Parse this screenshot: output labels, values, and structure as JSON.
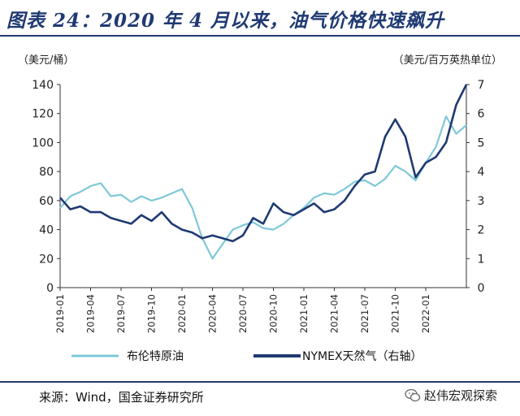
{
  "figure": {
    "title": "图表 24：2020 年 4 月以来，油气价格快速飙升",
    "source": "来源：Wind，国金证券研究所",
    "watermark": "赵伟宏观探索"
  },
  "chart_data": {
    "type": "line",
    "left_axis": {
      "unit_label": "（美元/桶）",
      "range": [
        0,
        140
      ],
      "ticks": [
        0,
        20,
        40,
        60,
        80,
        100,
        120,
        140
      ]
    },
    "right_axis": {
      "unit_label": "（美元/百万英热单位）",
      "range": [
        0,
        7
      ],
      "ticks": [
        0,
        1,
        2,
        3,
        4,
        5,
        6,
        7
      ]
    },
    "x_ticks": [
      "2019-01",
      "2019-04",
      "2019-07",
      "2019-10",
      "2020-01",
      "2020-04",
      "2020-07",
      "2020-10",
      "2021-01",
      "2021-04",
      "2021-07",
      "2021-10",
      "2022-01"
    ],
    "x_range": [
      "2019-01",
      "2022-05"
    ],
    "legend": {
      "placement": "bottom"
    },
    "series": [
      {
        "name": "布伦特原油",
        "axis": "left",
        "color": "#7ec8d8",
        "points": [
          [
            "2019-01",
            55
          ],
          [
            "2019-02",
            63
          ],
          [
            "2019-03",
            66
          ],
          [
            "2019-04",
            70
          ],
          [
            "2019-05",
            72
          ],
          [
            "2019-06",
            63
          ],
          [
            "2019-07",
            64
          ],
          [
            "2019-08",
            59
          ],
          [
            "2019-09",
            63
          ],
          [
            "2019-10",
            60
          ],
          [
            "2019-11",
            62
          ],
          [
            "2019-12",
            65
          ],
          [
            "2020-01",
            68
          ],
          [
            "2020-02",
            55
          ],
          [
            "2020-03",
            34
          ],
          [
            "2020-04",
            20
          ],
          [
            "2020-05",
            30
          ],
          [
            "2020-06",
            40
          ],
          [
            "2020-07",
            43
          ],
          [
            "2020-08",
            45
          ],
          [
            "2020-09",
            41
          ],
          [
            "2020-10",
            40
          ],
          [
            "2020-11",
            44
          ],
          [
            "2020-12",
            50
          ],
          [
            "2021-01",
            55
          ],
          [
            "2021-02",
            62
          ],
          [
            "2021-03",
            65
          ],
          [
            "2021-04",
            64
          ],
          [
            "2021-05",
            68
          ],
          [
            "2021-06",
            73
          ],
          [
            "2021-07",
            74
          ],
          [
            "2021-08",
            70
          ],
          [
            "2021-09",
            75
          ],
          [
            "2021-10",
            84
          ],
          [
            "2021-11",
            80
          ],
          [
            "2021-12",
            74
          ],
          [
            "2022-01",
            86
          ],
          [
            "2022-02",
            97
          ],
          [
            "2022-03",
            118
          ],
          [
            "2022-04",
            106
          ],
          [
            "2022-05",
            112
          ]
        ]
      },
      {
        "name": "NYMEX天然气（右轴）",
        "axis": "right",
        "color": "#1f3a73",
        "points": [
          [
            "2019-01",
            3.1
          ],
          [
            "2019-02",
            2.7
          ],
          [
            "2019-03",
            2.8
          ],
          [
            "2019-04",
            2.6
          ],
          [
            "2019-05",
            2.6
          ],
          [
            "2019-06",
            2.4
          ],
          [
            "2019-07",
            2.3
          ],
          [
            "2019-08",
            2.2
          ],
          [
            "2019-09",
            2.5
          ],
          [
            "2019-10",
            2.3
          ],
          [
            "2019-11",
            2.6
          ],
          [
            "2019-12",
            2.2
          ],
          [
            "2020-01",
            2.0
          ],
          [
            "2020-02",
            1.9
          ],
          [
            "2020-03",
            1.7
          ],
          [
            "2020-04",
            1.8
          ],
          [
            "2020-05",
            1.7
          ],
          [
            "2020-06",
            1.6
          ],
          [
            "2020-07",
            1.8
          ],
          [
            "2020-08",
            2.4
          ],
          [
            "2020-09",
            2.2
          ],
          [
            "2020-10",
            2.9
          ],
          [
            "2020-11",
            2.6
          ],
          [
            "2020-12",
            2.5
          ],
          [
            "2021-01",
            2.7
          ],
          [
            "2021-02",
            2.9
          ],
          [
            "2021-03",
            2.6
          ],
          [
            "2021-04",
            2.7
          ],
          [
            "2021-05",
            3.0
          ],
          [
            "2021-06",
            3.5
          ],
          [
            "2021-07",
            3.9
          ],
          [
            "2021-08",
            4.0
          ],
          [
            "2021-09",
            5.2
          ],
          [
            "2021-10",
            5.8
          ],
          [
            "2021-11",
            5.2
          ],
          [
            "2021-12",
            3.8
          ],
          [
            "2022-01",
            4.3
          ],
          [
            "2022-02",
            4.5
          ],
          [
            "2022-03",
            5.0
          ],
          [
            "2022-04",
            6.3
          ],
          [
            "2022-05",
            7.0
          ]
        ]
      }
    ]
  }
}
